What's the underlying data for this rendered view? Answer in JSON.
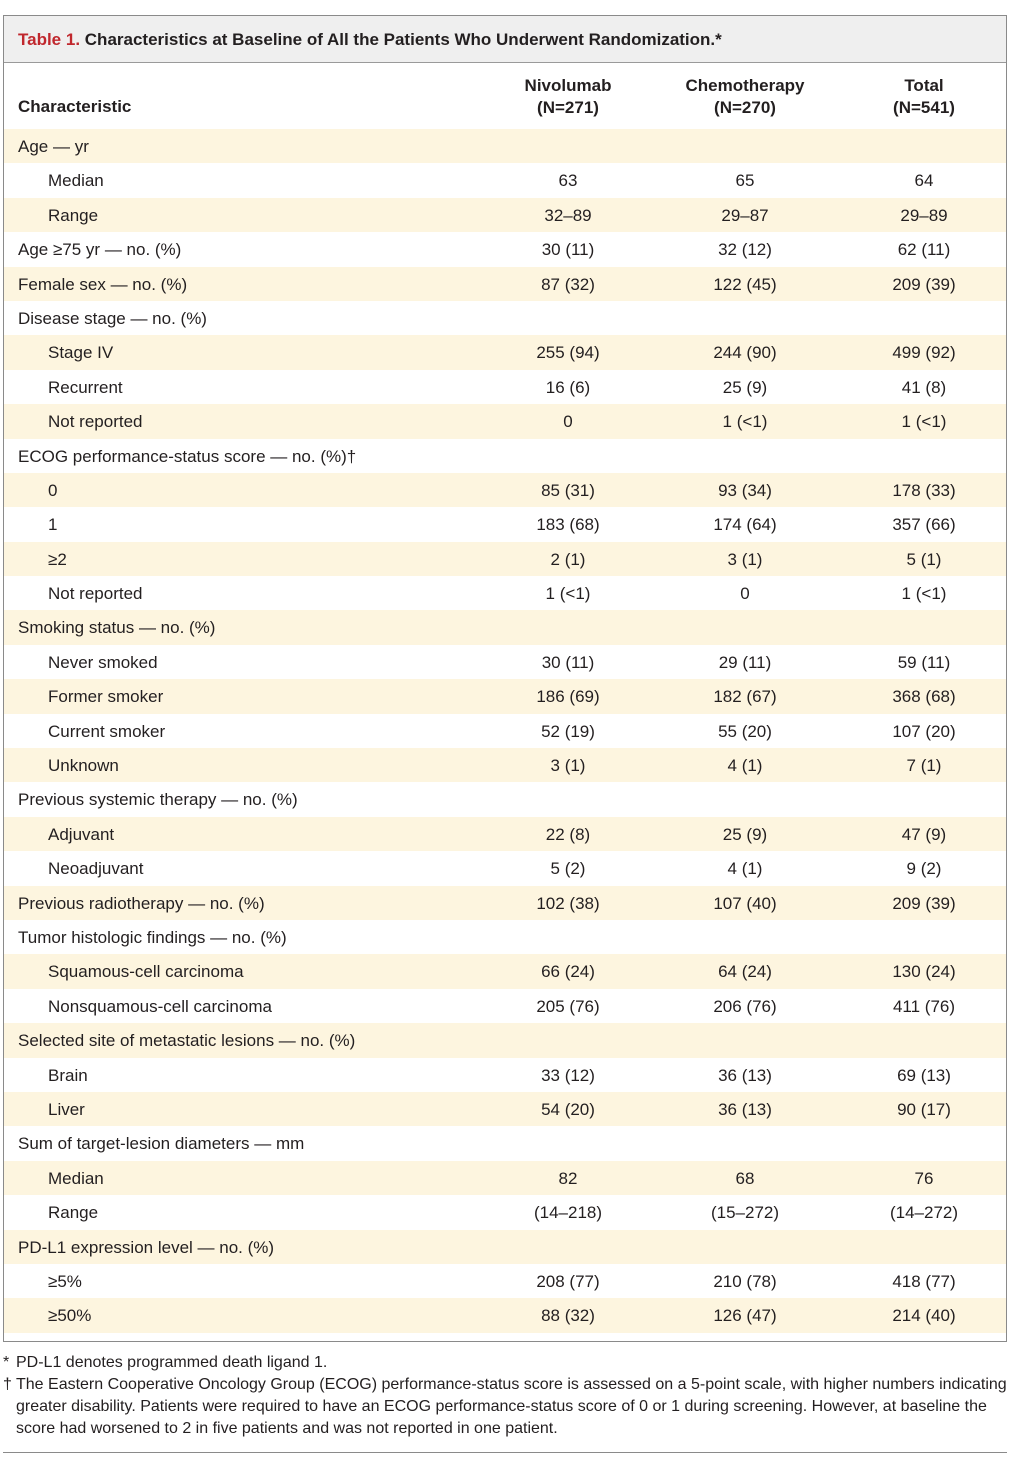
{
  "table": {
    "number": "Table 1.",
    "title": "Characteristics at Baseline of All the Patients Who Underwent Randomization.*",
    "headers": {
      "characteristic": "Characteristic",
      "col1": [
        "Nivolumab",
        "(N=271)"
      ],
      "col2": [
        "Chemotherapy",
        "(N=270)"
      ],
      "col3": [
        "Total",
        "(N=541)"
      ]
    },
    "rows": [
      {
        "label": "Age — yr",
        "indent": false,
        "values": [
          "",
          "",
          ""
        ]
      },
      {
        "label": "Median",
        "indent": true,
        "values": [
          "63",
          "65",
          "64"
        ]
      },
      {
        "label": "Range",
        "indent": true,
        "values": [
          "32–89",
          "29–87",
          "29–89"
        ]
      },
      {
        "label": "Age ≥75 yr — no. (%)",
        "indent": false,
        "values": [
          "30 (11)",
          "32 (12)",
          "62 (11)"
        ]
      },
      {
        "label": "Female sex — no. (%)",
        "indent": false,
        "values": [
          "87 (32)",
          "122 (45)",
          "209 (39)"
        ]
      },
      {
        "label": "Disease stage — no. (%)",
        "indent": false,
        "values": [
          "",
          "",
          ""
        ]
      },
      {
        "label": "Stage IV",
        "indent": true,
        "values": [
          "255 (94)",
          "244 (90)",
          "499 (92)"
        ]
      },
      {
        "label": "Recurrent",
        "indent": true,
        "values": [
          "16 (6)",
          "25 (9)",
          "41 (8)"
        ]
      },
      {
        "label": "Not reported",
        "indent": true,
        "values": [
          "0",
          "1 (<1)",
          "1 (<1)"
        ]
      },
      {
        "label": "ECOG performance-status score — no. (%)†",
        "indent": false,
        "values": [
          "",
          "",
          ""
        ]
      },
      {
        "label": "0",
        "indent": true,
        "values": [
          "85 (31)",
          "93 (34)",
          "178 (33)"
        ]
      },
      {
        "label": "1",
        "indent": true,
        "values": [
          "183 (68)",
          "174 (64)",
          "357 (66)"
        ]
      },
      {
        "label": "≥2",
        "indent": true,
        "values": [
          "2 (1)",
          "3 (1)",
          "5 (1)"
        ]
      },
      {
        "label": "Not reported",
        "indent": true,
        "values": [
          "1 (<1)",
          "0",
          "1 (<1)"
        ]
      },
      {
        "label": "Smoking status — no. (%)",
        "indent": false,
        "values": [
          "",
          "",
          ""
        ]
      },
      {
        "label": "Never smoked",
        "indent": true,
        "values": [
          "30 (11)",
          "29 (11)",
          "59 (11)"
        ]
      },
      {
        "label": "Former smoker",
        "indent": true,
        "values": [
          "186 (69)",
          "182 (67)",
          "368 (68)"
        ]
      },
      {
        "label": "Current smoker",
        "indent": true,
        "values": [
          "52 (19)",
          "55 (20)",
          "107 (20)"
        ]
      },
      {
        "label": "Unknown",
        "indent": true,
        "values": [
          "3 (1)",
          "4 (1)",
          "7 (1)"
        ]
      },
      {
        "label": "Previous systemic therapy — no. (%)",
        "indent": false,
        "values": [
          "",
          "",
          ""
        ]
      },
      {
        "label": "Adjuvant",
        "indent": true,
        "values": [
          "22 (8)",
          "25 (9)",
          "47 (9)"
        ]
      },
      {
        "label": "Neoadjuvant",
        "indent": true,
        "values": [
          "5 (2)",
          "4 (1)",
          "9 (2)"
        ]
      },
      {
        "label": "Previous radiotherapy — no. (%)",
        "indent": false,
        "values": [
          "102 (38)",
          "107 (40)",
          "209 (39)"
        ]
      },
      {
        "label": "Tumor histologic findings — no. (%)",
        "indent": false,
        "values": [
          "",
          "",
          ""
        ]
      },
      {
        "label": "Squamous-cell carcinoma",
        "indent": true,
        "values": [
          "66 (24)",
          "64 (24)",
          "130 (24)"
        ]
      },
      {
        "label": "Nonsquamous-cell carcinoma",
        "indent": true,
        "values": [
          "205 (76)",
          "206 (76)",
          "411 (76)"
        ]
      },
      {
        "label": "Selected site of metastatic lesions — no. (%)",
        "indent": false,
        "values": [
          "",
          "",
          ""
        ]
      },
      {
        "label": "Brain",
        "indent": true,
        "values": [
          "33 (12)",
          "36 (13)",
          "69 (13)"
        ]
      },
      {
        "label": "Liver",
        "indent": true,
        "values": [
          "54 (20)",
          "36 (13)",
          "90 (17)"
        ]
      },
      {
        "label": "Sum of target-lesion diameters — mm",
        "indent": false,
        "values": [
          "",
          "",
          ""
        ]
      },
      {
        "label": "Median",
        "indent": true,
        "values": [
          "82",
          "68",
          "76"
        ]
      },
      {
        "label": "Range",
        "indent": true,
        "values": [
          "(14–218)",
          "(15–272)",
          "(14–272)"
        ]
      },
      {
        "label": "PD-L1 expression level — no. (%)",
        "indent": false,
        "values": [
          "",
          "",
          ""
        ]
      },
      {
        "label": "≥5%",
        "indent": true,
        "values": [
          "208 (77)",
          "210 (78)",
          "418 (77)"
        ]
      },
      {
        "label": "≥50%",
        "indent": true,
        "values": [
          "88 (32)",
          "126 (47)",
          "214 (40)"
        ]
      }
    ]
  },
  "footnotes": [
    {
      "mark": "*",
      "text": "PD-L1 denotes programmed death ligand 1."
    },
    {
      "mark": "†",
      "text": "The Eastern Cooperative Oncology Group (ECOG) performance-status score is assessed on a 5-point scale, with higher numbers indicating greater disability. Patients were required to have an ECOG performance-status score of 0 or 1 during screening. However, at baseline the score had worsened to 2 in five patients and was not reported in one patient."
    }
  ],
  "colors": {
    "title_number": "#c0272d",
    "row_shade": "#fdf5df",
    "title_bar": "#efefef"
  }
}
